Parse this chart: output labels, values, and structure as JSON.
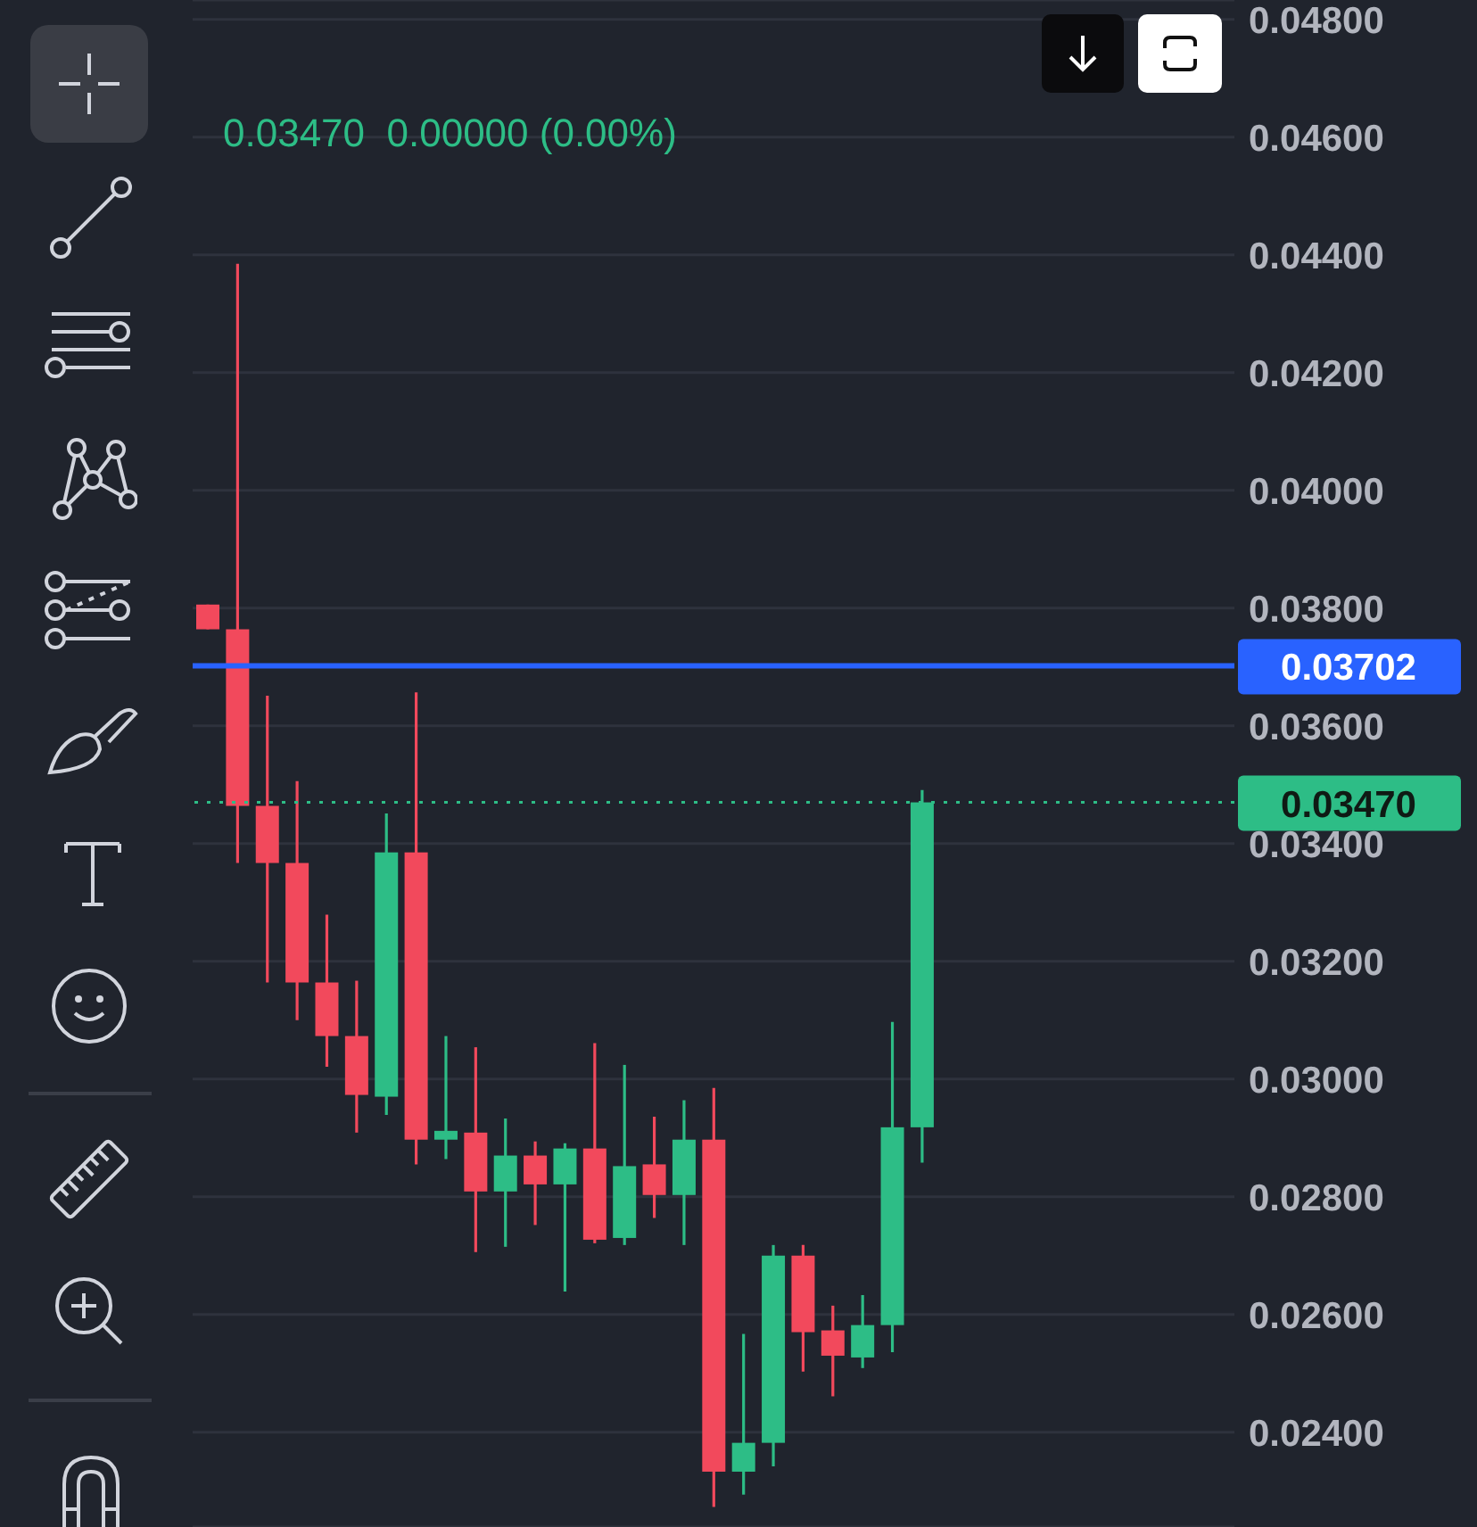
{
  "chart_data": {
    "type": "candlestick",
    "subtitle": "0.03470  0.00000 (0.00%)",
    "categories": [
      null,
      null,
      null,
      null,
      null,
      null,
      null,
      null,
      null,
      null,
      null,
      null,
      null,
      null,
      null,
      null,
      null,
      null,
      null,
      null,
      null,
      null,
      null,
      null,
      null,
      null,
      null,
      null,
      null,
      null,
      null,
      null,
      null,
      null,
      null
    ],
    "ohlc": [
      [
        0.03806,
        0.03806,
        0.03764,
        0.03764
      ],
      [
        0.03764,
        0.04385,
        0.03367,
        0.03464
      ],
      [
        0.03464,
        0.03651,
        0.03164,
        0.03367
      ],
      [
        0.03367,
        0.03506,
        0.031,
        0.03164
      ],
      [
        0.03164,
        0.03279,
        0.03021,
        0.03073
      ],
      [
        0.03073,
        0.03167,
        0.02909,
        0.02973
      ],
      [
        0.0297,
        0.03451,
        0.02939,
        0.03385
      ],
      [
        0.03385,
        0.03657,
        0.02855,
        0.02897
      ],
      [
        0.02897,
        0.03073,
        0.02864,
        0.02912
      ],
      [
        0.02909,
        0.03054,
        0.02706,
        0.02809
      ],
      [
        0.02809,
        0.02933,
        0.02715,
        0.0287
      ],
      [
        0.0287,
        0.02894,
        0.02752,
        0.02821
      ],
      [
        0.02821,
        0.02891,
        0.02639,
        0.02882
      ],
      [
        0.02882,
        0.03061,
        0.02721,
        0.02727
      ],
      [
        0.0273,
        0.03024,
        0.02718,
        0.02852
      ],
      [
        0.02855,
        0.02936,
        0.02764,
        0.02803
      ],
      [
        0.02803,
        0.02964,
        0.02718,
        0.02897
      ],
      [
        0.02897,
        0.02985,
        0.02273,
        0.02333
      ],
      [
        0.02333,
        0.02567,
        0.02294,
        0.02382
      ],
      [
        0.02382,
        0.02718,
        0.02342,
        0.027
      ],
      [
        0.027,
        0.02718,
        0.02503,
        0.0257
      ],
      [
        0.02573,
        0.02615,
        0.02461,
        0.0253
      ],
      [
        0.02527,
        0.02633,
        0.02509,
        0.02582
      ],
      [
        0.02582,
        0.03097,
        0.02536,
        0.02918
      ],
      [
        0.02918,
        0.03491,
        0.02858,
        0.0347
      ],
      null,
      null,
      null,
      null,
      null,
      null,
      null,
      null,
      null,
      null
    ],
    "colors": [
      "#f2495c",
      "#f2495c",
      "#f2495c",
      "#f2495c",
      "#f2495c",
      "#f2495c",
      "#2dbd86",
      "#f2495c",
      "#2dbd86",
      "#f2495c",
      "#2dbd86",
      "#f2495c",
      "#2dbd86",
      "#f2495c",
      "#2dbd86",
      "#f2495c",
      "#2dbd86",
      "#f2495c",
      "#2dbd86",
      "#2dbd86",
      "#f2495c",
      "#f2495c",
      "#2dbd86",
      "#2dbd86",
      "#2dbd86",
      null,
      null,
      null,
      null,
      null,
      null,
      null,
      null,
      null,
      null
    ],
    "ylim": [
      0.02239,
      0.04833
    ],
    "yticks": [
      {
        "value": 0.024,
        "label": "0.02400"
      },
      {
        "value": 0.026,
        "label": "0.02600"
      },
      {
        "value": 0.028,
        "label": "0.02800"
      },
      {
        "value": 0.03,
        "label": "0.03000"
      },
      {
        "value": 0.032,
        "label": "0.03200"
      },
      {
        "value": 0.034,
        "label": "0.03400"
      },
      {
        "value": 0.036,
        "label": "0.03600"
      },
      {
        "value": 0.038,
        "label": "0.03800"
      },
      {
        "value": 0.04,
        "label": "0.04000"
      },
      {
        "value": 0.042,
        "label": "0.04200"
      },
      {
        "value": 0.044,
        "label": "0.04400"
      },
      {
        "value": 0.046,
        "label": "0.04600"
      },
      {
        "value": 0.048,
        "label": "0.04800"
      }
    ],
    "ref_lines": [
      {
        "axis": "y",
        "value": 0.03702,
        "label": "0.03702",
        "color": "#2962ff",
        "line_style": "solid"
      },
      {
        "axis": "y",
        "value": 0.0347,
        "label": "0.03470",
        "color": "#2dbd86",
        "line_style": "dotted"
      }
    ],
    "grid": "y",
    "tick_labels": "y",
    "legend": false
  }
}
